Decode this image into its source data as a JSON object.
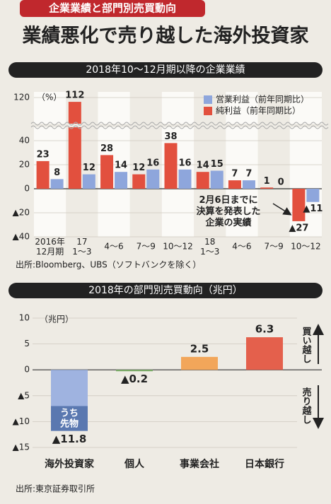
{
  "header": {
    "tag": "企業業績と部門別売買動向",
    "title": "業績悪化で売り越した海外投資家"
  },
  "chart_data": [
    {
      "type": "bar",
      "title": "2018年10～12月期以降の企業業績",
      "y_unit": "（%）",
      "categories": [
        "2016年\n12月期",
        "17\n1～3",
        "4～6",
        "7～9",
        "10～12",
        "18\n1～3",
        "4～6",
        "7～9",
        "10～12"
      ],
      "series": [
        {
          "name": "営業利益（前年同期比）",
          "color": "#8ea6dc",
          "values": [
            8,
            12,
            14,
            16,
            16,
            15,
            7,
            0,
            -11
          ],
          "value_labels": [
            "8",
            "12",
            "14",
            "16",
            "16",
            "15",
            "7",
            "0",
            "▲11"
          ]
        },
        {
          "name": "純利益（前年同期比）",
          "color": "#e2503e",
          "values": [
            23,
            112,
            28,
            12,
            38,
            14,
            7,
            1,
            -27
          ],
          "value_labels": [
            "23",
            "112",
            "28",
            "12",
            "38",
            "14",
            "7",
            "1",
            "▲27"
          ]
        }
      ],
      "ylim": [
        -40,
        120
      ],
      "yticks": [
        {
          "value": -40,
          "label": "▲40"
        },
        {
          "value": -20,
          "label": "▲20"
        },
        0,
        20,
        40,
        120
      ],
      "y_axis_break": true,
      "legend": "upper right",
      "annotation": "2月6日までに\n決算を発表した\n企業の実績",
      "source": "出所:Bloomberg、UBS（ソフトバンクを除く）"
    },
    {
      "type": "bar",
      "title": "2018年の部門別売買動向（兆円）",
      "y_unit": "（兆円）",
      "categories": [
        "海外投資家",
        "個人",
        "事業会社",
        "日本銀行"
      ],
      "values": [
        -11.8,
        -0.2,
        2.5,
        6.3
      ],
      "value_labels": [
        "▲11.8",
        "▲0.2",
        "2.5",
        "6.3"
      ],
      "colors": [
        "#9fb3e0",
        "#7fb36a",
        "#f2a65a",
        "#e4604c"
      ],
      "ylim": [
        -15,
        10
      ],
      "yticks": [
        {
          "value": -15,
          "label": "▲15"
        },
        {
          "value": -10,
          "label": "▲10"
        },
        {
          "value": -5,
          "label": "▲5"
        },
        0,
        5,
        10
      ],
      "inset": {
        "category": 0,
        "label": "うち\n先物",
        "value": -4.8,
        "color": "#5a78b0"
      },
      "annotations": {
        "up": "買い越し",
        "down": "売り越し"
      },
      "source": "出所:東京証券取引所"
    }
  ]
}
